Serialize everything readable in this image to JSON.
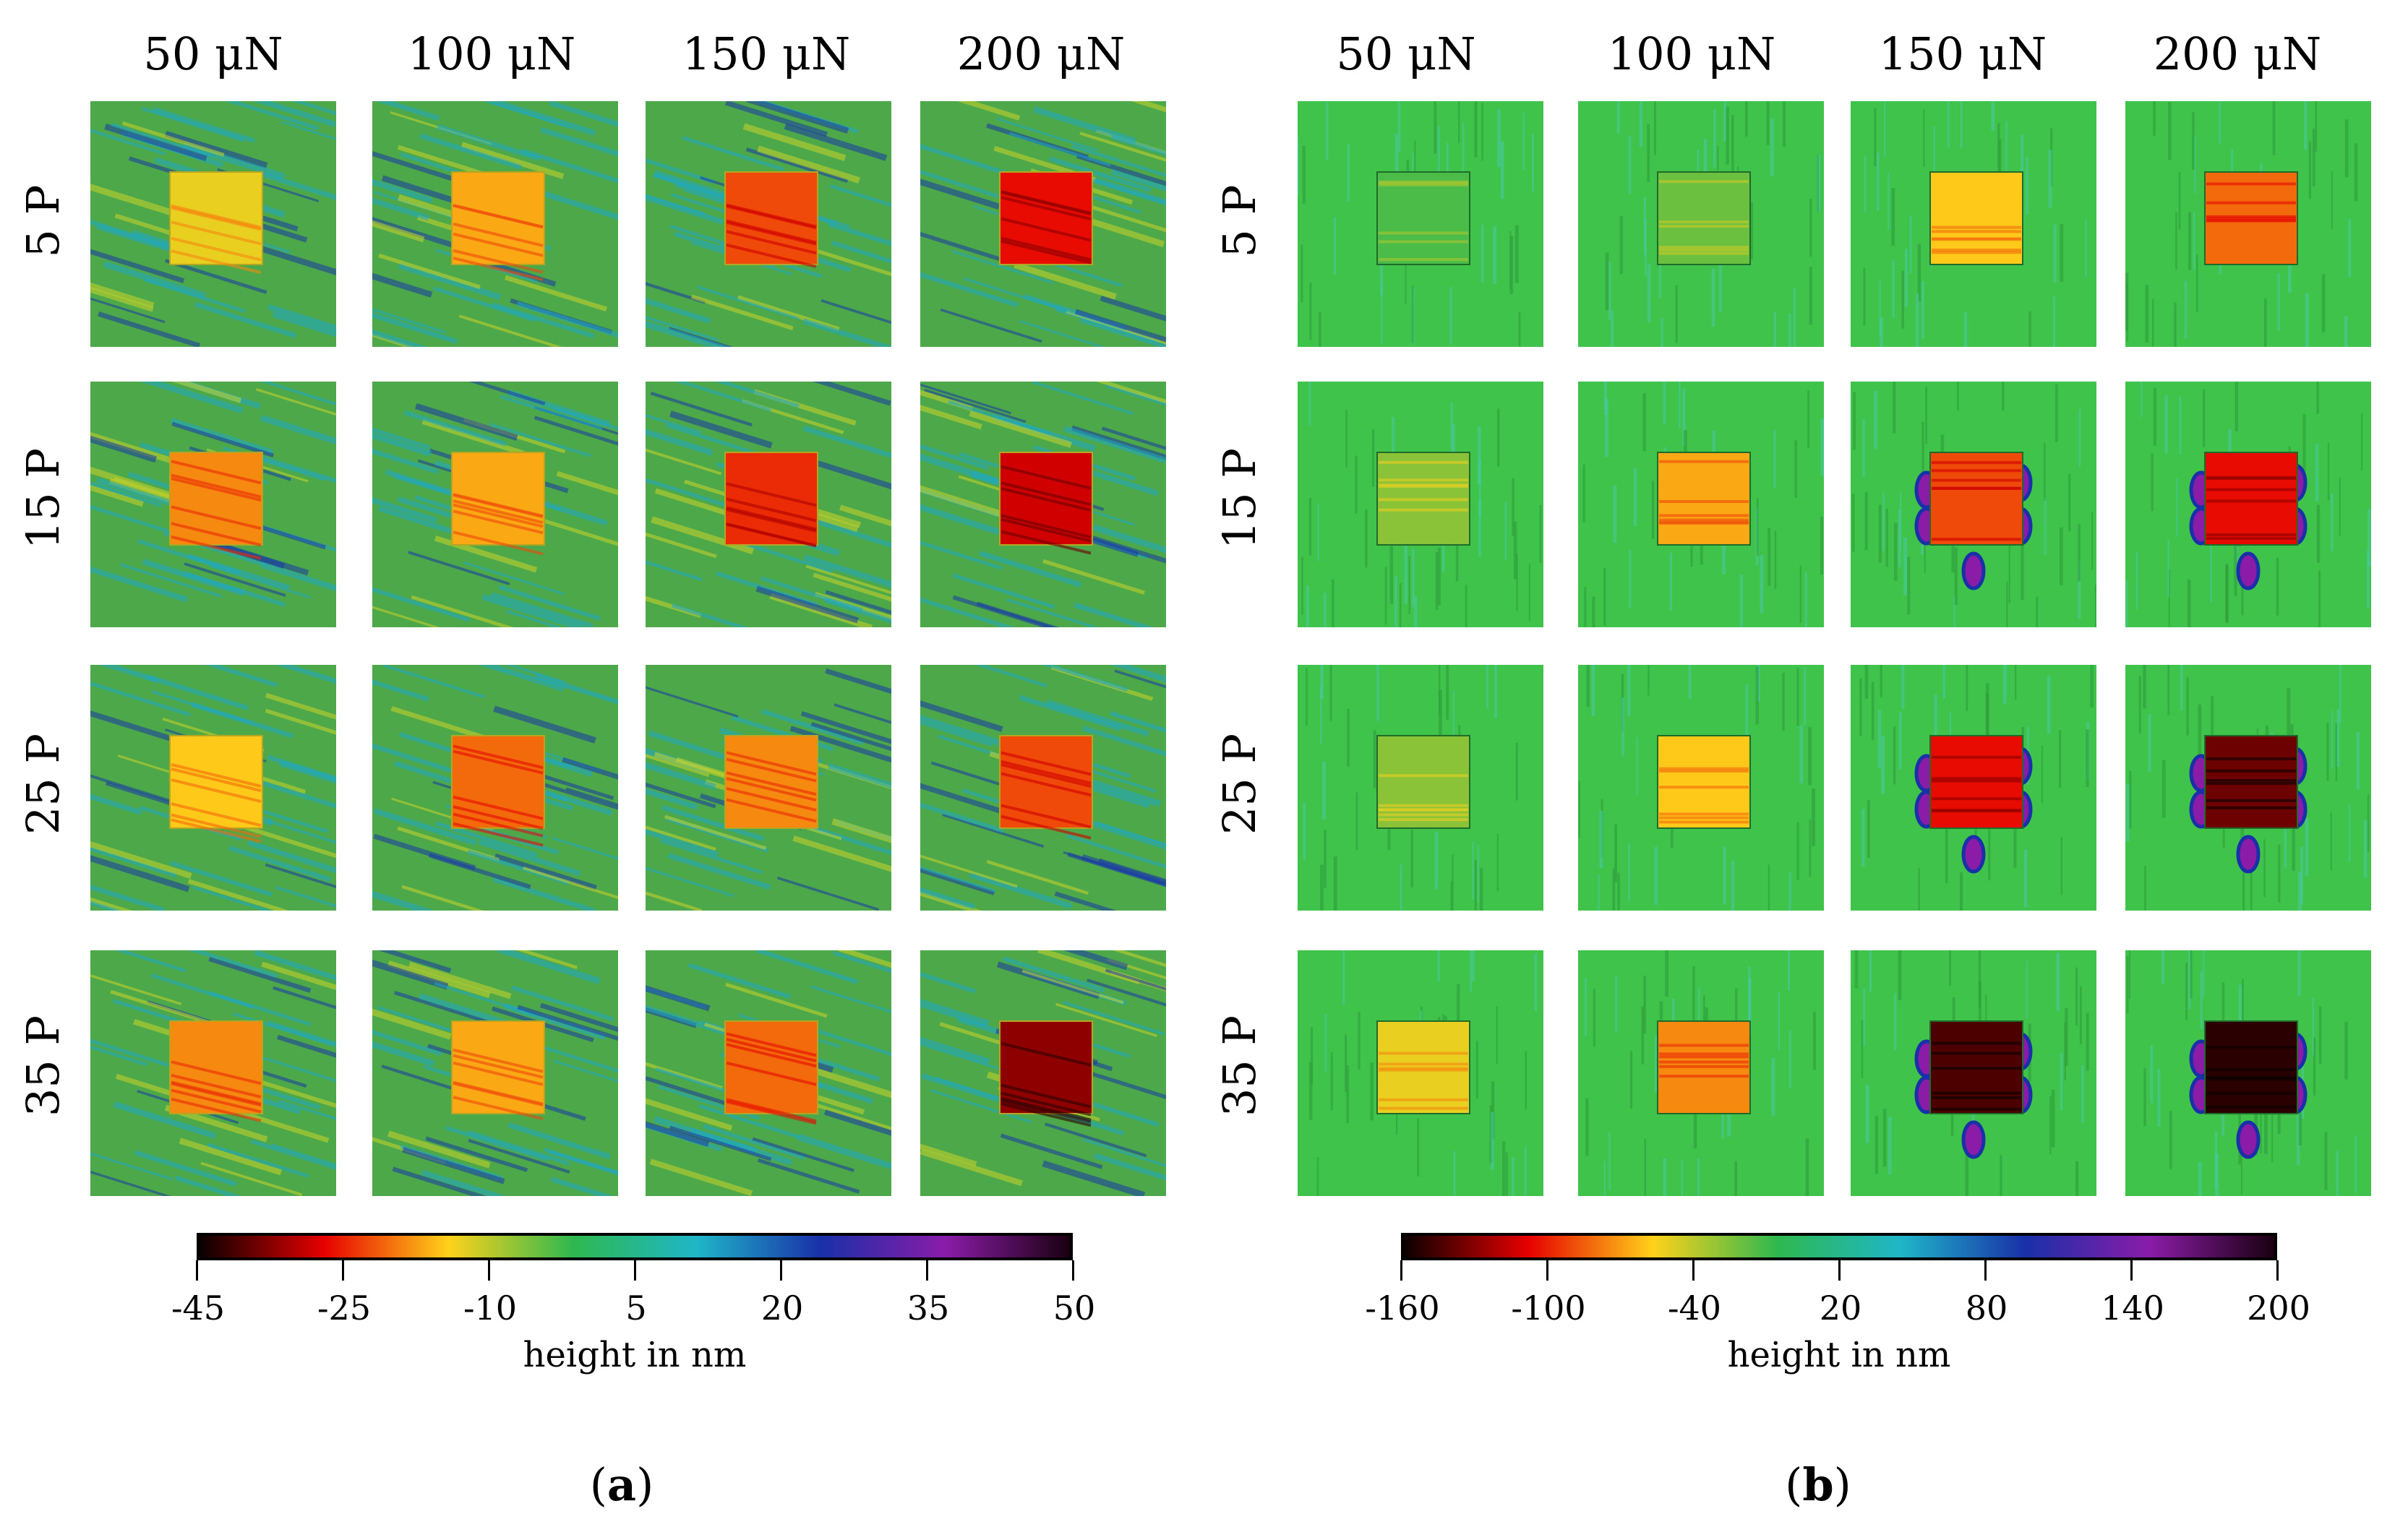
{
  "figure": {
    "panels": [
      {
        "id": "a",
        "caption_letter": "a",
        "columns": [
          "50 μN",
          "100 μN",
          "150 μN",
          "200 μN"
        ],
        "rows": [
          "5 P",
          "15 P",
          "25 P",
          "35 P"
        ],
        "colorbar": {
          "ticks": [
            "-45",
            "-25",
            "-10",
            "5",
            "20",
            "35",
            "50"
          ],
          "title": "height in nm",
          "range": [
            -45,
            50
          ]
        },
        "pad_levels": [
          [
            0.3,
            0.4,
            0.55,
            0.65
          ],
          [
            0.45,
            0.4,
            0.6,
            0.7
          ],
          [
            0.35,
            0.5,
            0.45,
            0.55
          ],
          [
            0.45,
            0.4,
            0.5,
            0.8
          ]
        ]
      },
      {
        "id": "b",
        "caption_letter": "b",
        "columns": [
          "50 μN",
          "100 μN",
          "150 μN",
          "200 μN"
        ],
        "rows": [
          "5 P",
          "15 P",
          "25 P",
          "35 P"
        ],
        "colorbar": {
          "ticks": [
            "-160",
            "-100",
            "-40",
            "20",
            "80",
            "140",
            "200"
          ],
          "title": "height in nm",
          "range": [
            -160,
            200
          ]
        },
        "pad_levels": [
          [
            0.05,
            0.1,
            0.35,
            0.5
          ],
          [
            0.15,
            0.4,
            0.55,
            0.65
          ],
          [
            0.15,
            0.35,
            0.65,
            0.85
          ],
          [
            0.3,
            0.45,
            0.9,
            0.95
          ]
        ]
      }
    ],
    "colors": {
      "a_background": "#4da84a",
      "b_background": "#3fc34a",
      "colormap": [
        "#0a0000",
        "#e60000",
        "#ffd21a",
        "#2fb84f",
        "#1fb6c8",
        "#1930a8",
        "#8a1ca8",
        "#1a0010"
      ]
    }
  }
}
